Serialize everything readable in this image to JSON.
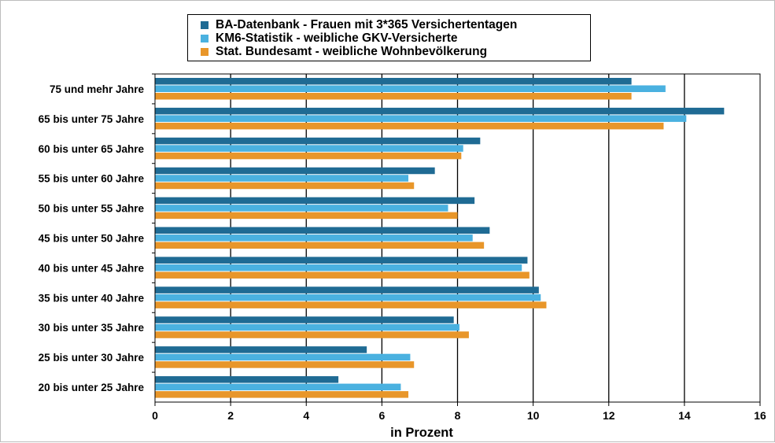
{
  "chart_data": {
    "type": "bar",
    "orientation": "horizontal",
    "title": "",
    "xlabel": "in Prozent",
    "ylabel": "",
    "xlim": [
      0,
      16
    ],
    "xticks": [
      "0",
      "2",
      "4",
      "6",
      "8",
      "10",
      "12",
      "14",
      "16"
    ],
    "grid": "vertical major gridlines",
    "legend_position": "top",
    "categories": [
      "75 und mehr Jahre",
      "65 bis unter 75 Jahre",
      "60 bis unter 65 Jahre",
      "55 bis unter 60 Jahre",
      "50 bis unter 55 Jahre",
      "45 bis unter 50 Jahre",
      "40 bis unter 45 Jahre",
      "35 bis unter 40 Jahre",
      "30 bis unter 35 Jahre",
      "25 bis unter 30 Jahre",
      "20 bis unter 25 Jahre"
    ],
    "series": [
      {
        "name": "BA-Datenbank - Frauen mit 3*365 Versichertentagen",
        "color": "#1f6b94",
        "values": [
          12.6,
          15.05,
          8.6,
          7.4,
          8.45,
          8.85,
          9.85,
          10.15,
          7.9,
          5.6,
          4.85
        ]
      },
      {
        "name": "KM6-Statistik - weibliche GKV-Versicherte",
        "color": "#4ab1e0",
        "values": [
          13.5,
          14.05,
          8.15,
          6.7,
          7.75,
          8.4,
          9.7,
          10.2,
          8.05,
          6.75,
          6.5
        ]
      },
      {
        "name": "Stat. Bundesamt - weibliche Wohnbevölkerung",
        "color": "#e8962a",
        "values": [
          12.6,
          13.45,
          8.1,
          6.85,
          8.0,
          8.7,
          9.9,
          10.35,
          8.3,
          6.85,
          6.7
        ]
      }
    ]
  }
}
